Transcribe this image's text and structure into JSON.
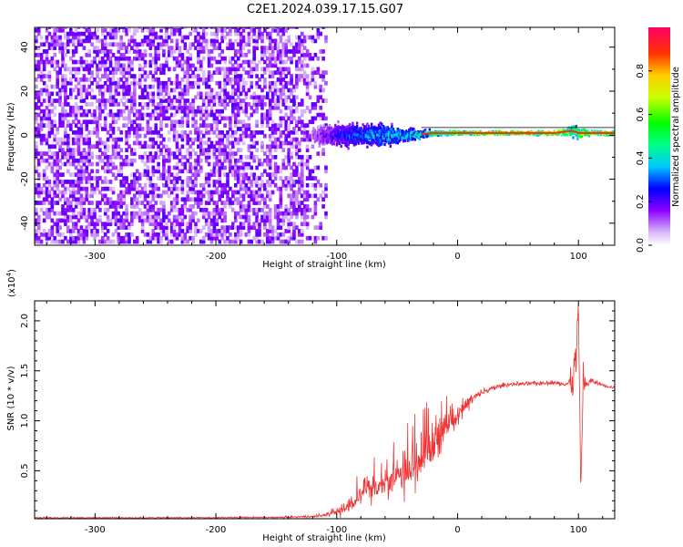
{
  "title": "C2E1.2024.039.17.15.G07",
  "chart_data": [
    {
      "type": "heatmap",
      "xlabel": "Height of straight line (km)",
      "ylabel": "Frequency (Hz)",
      "xlim": [
        -350,
        130
      ],
      "ylim": [
        -50,
        49
      ],
      "x_ticks": [
        -300,
        -200,
        -100,
        0,
        100
      ],
      "x_tick_labels": [
        "-300",
        "-200",
        "-100",
        "0",
        "100"
      ],
      "y_ticks": [
        -40,
        -20,
        0,
        20,
        40
      ],
      "y_tick_labels": [
        "-40",
        "-20",
        "0",
        "20",
        "40"
      ],
      "colorbar": {
        "label": "Normalized spectral amplitude",
        "range": [
          0,
          1
        ],
        "ticks": [
          0,
          0.2,
          0.4,
          0.6,
          0.8
        ],
        "tick_labels": [
          "0.0",
          "0.2",
          "0.4",
          "0.6",
          "0.8"
        ]
      },
      "noise_region": {
        "x": [
          -350,
          -110
        ],
        "freq": [
          -49,
          49
        ],
        "amplitude": [
          0.05,
          0.2
        ]
      },
      "signal_trace": {
        "x": [
          -120,
          -100,
          -80,
          -60,
          -40,
          -20,
          0,
          20,
          40,
          60,
          80,
          95,
          100,
          110,
          130
        ],
        "freq": [
          0,
          0,
          0,
          0,
          0,
          1,
          1,
          1,
          1,
          1,
          1,
          2,
          1,
          1,
          1
        ],
        "spread_hz": [
          6,
          8,
          8,
          7,
          4,
          2,
          1.5,
          1.2,
          1.2,
          1.2,
          1.5,
          4,
          4,
          1.5,
          1.5
        ],
        "amplitude": [
          0.15,
          0.3,
          0.4,
          0.45,
          0.5,
          0.65,
          0.75,
          0.85,
          0.9,
          0.9,
          0.88,
          0.7,
          0.75,
          0.85,
          0.85
        ]
      },
      "grid": false
    },
    {
      "type": "line",
      "ylabel": "SNR (10 * v/v)",
      "scale_label": "(x10",
      "scale_exp": "4",
      "scale_close": ")",
      "xlabel": "Height of straight line (km)",
      "xlim": [
        -350,
        130
      ],
      "ylim": [
        0.02,
        2.2
      ],
      "x_ticks": [
        -300,
        -200,
        -100,
        0,
        100
      ],
      "x_tick_labels": [
        "-300",
        "-200",
        "-100",
        "0",
        "100"
      ],
      "y_ticks": [
        0.5,
        1.0,
        1.5,
        2.0
      ],
      "y_tick_labels": [
        "0.5",
        "1.0",
        "1.5",
        "2.0"
      ],
      "line_color": "#ee3333",
      "series": [
        {
          "x": [
            -350,
            -300,
            -250,
            -200,
            -150,
            -120,
            -110,
            -100,
            -90,
            -80,
            -70,
            -60,
            -50,
            -40,
            -30,
            -20,
            -15,
            -10,
            -5,
            0,
            10,
            20,
            30,
            40,
            50,
            60,
            70,
            80,
            90,
            95,
            98,
            100,
            102,
            104,
            106,
            110,
            120,
            130
          ],
          "y": [
            0.03,
            0.03,
            0.03,
            0.03,
            0.035,
            0.04,
            0.06,
            0.1,
            0.18,
            0.3,
            0.38,
            0.45,
            0.52,
            0.6,
            0.7,
            0.85,
            0.9,
            0.98,
            1.02,
            1.08,
            1.2,
            1.28,
            1.33,
            1.36,
            1.37,
            1.37,
            1.38,
            1.38,
            1.37,
            1.39,
            1.6,
            2.15,
            0.3,
            1.45,
            1.35,
            1.4,
            1.36,
            1.33
          ],
          "noise_amplitude": [
            0.01,
            0.01,
            0.01,
            0.01,
            0.01,
            0.015,
            0.03,
            0.08,
            0.15,
            0.25,
            0.3,
            0.35,
            0.4,
            0.4,
            0.45,
            0.5,
            0.55,
            0.3,
            0.2,
            0.15,
            0.1,
            0.05,
            0.04,
            0.03,
            0.03,
            0.03,
            0.03,
            0.03,
            0.05,
            0.2,
            0.6,
            0.1,
            0.1,
            0.2,
            0.1,
            0.05,
            0.03,
            0.03
          ]
        }
      ]
    }
  ]
}
